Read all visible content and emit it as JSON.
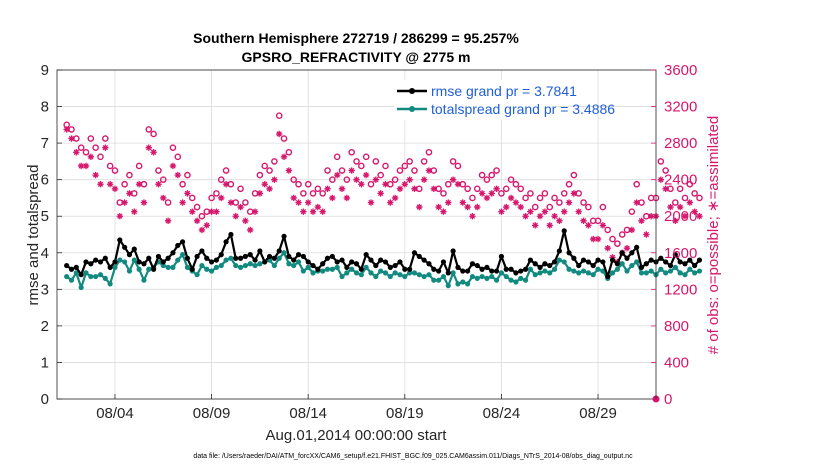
{
  "chart_data": {
    "type": "line",
    "title": "Southern Hemisphere 272719 / 286299 = 95.257%",
    "subtitle": "GPSRO_REFRACTIVITY @ 2775 m",
    "xlabel": "Aug.01,2014 00:00:00 start",
    "ylabel_left": "rmse and totalspread",
    "ylabel_right": "# of obs: o=possible; ∗=assimilated",
    "footnote": "data file: /Users/raeder/DAI/ATM_forcXX/CAM6_setup/f.e21.FHIST_BGC.f09_025.CAM6assim.011/Diags_NTrS_2014-08/obs_diag_output.nc",
    "xlim": [
      0.5,
      31.5
    ],
    "ylim_left": [
      0,
      9
    ],
    "ylim_right": [
      0,
      3600
    ],
    "x_ticks": [
      3.5,
      8.5,
      13.5,
      18.5,
      23.5,
      28.5
    ],
    "x_tick_labels": [
      "08/04",
      "08/09",
      "08/14",
      "08/19",
      "08/24",
      "08/29"
    ],
    "y_ticks_left": [
      "0",
      "1",
      "2",
      "3",
      "4",
      "5",
      "6",
      "7",
      "8",
      "9"
    ],
    "y_ticks_right": [
      "0",
      "400",
      "800",
      "1200",
      "1600",
      "2000",
      "2400",
      "2800",
      "3200",
      "3600"
    ],
    "legend_position": "top-right",
    "colors": {
      "rmse": "#000000",
      "spread": "#138a80",
      "obs": "#d6176d",
      "grid": "#dcdcdc",
      "legend_text": "#1f5fd6"
    },
    "series": [
      {
        "name": "rmse grand pr = 3.7841",
        "axis": "left",
        "values": [
          3.65,
          3.55,
          3.6,
          3.4,
          3.75,
          3.7,
          3.8,
          3.75,
          3.85,
          3.6,
          3.75,
          4.35,
          4.15,
          3.95,
          4.1,
          3.75,
          3.7,
          3.85,
          3.55,
          3.9,
          3.75,
          3.85,
          4.0,
          4.2,
          4.3,
          3.85,
          3.55,
          3.9,
          4.05,
          3.85,
          3.75,
          3.8,
          3.95,
          4.3,
          4.5,
          3.85,
          3.85,
          3.9,
          3.95,
          3.8,
          4.05,
          3.75,
          3.9,
          3.85,
          4.05,
          4.45,
          3.9,
          3.8,
          3.95,
          3.9,
          3.75,
          3.65,
          3.55,
          3.7,
          3.85,
          3.9,
          3.75,
          3.8,
          3.6,
          3.75,
          3.7,
          3.55,
          3.95,
          3.8,
          3.65,
          3.8,
          3.75,
          3.6,
          3.65,
          3.75,
          3.55,
          3.55,
          4.0,
          3.9,
          3.8,
          3.7,
          3.55,
          3.5,
          3.75,
          3.45,
          4.05,
          3.6,
          3.5,
          3.5,
          3.7,
          3.65,
          3.55,
          3.6,
          3.5,
          3.5,
          3.9,
          3.55,
          3.55,
          3.45,
          3.5,
          3.55,
          3.8,
          3.7,
          3.6,
          3.7,
          3.65,
          3.75,
          4.05,
          4.6,
          4.0,
          3.85,
          3.65,
          3.8,
          3.75,
          3.65,
          3.8,
          3.75,
          3.35,
          3.8,
          3.7,
          4.0,
          3.85,
          4.0,
          4.15,
          3.6,
          3.7,
          3.8,
          3.75,
          3.85,
          3.75,
          3.65,
          3.95,
          3.75,
          3.7,
          3.8,
          3.65,
          3.8
        ]
      },
      {
        "name": "totalspread grand pr = 3.4886",
        "axis": "left",
        "values": [
          3.35,
          3.25,
          3.45,
          3.05,
          3.45,
          3.35,
          3.35,
          3.4,
          3.3,
          3.15,
          3.6,
          3.8,
          3.75,
          3.5,
          3.8,
          3.55,
          3.25,
          3.55,
          3.6,
          3.75,
          3.65,
          3.6,
          3.6,
          3.8,
          3.95,
          3.6,
          3.5,
          3.4,
          3.65,
          3.55,
          3.5,
          3.6,
          3.65,
          3.8,
          3.85,
          3.65,
          3.6,
          3.65,
          3.7,
          3.65,
          3.7,
          3.75,
          3.8,
          3.65,
          3.85,
          4.0,
          3.7,
          3.65,
          3.75,
          3.5,
          3.6,
          3.45,
          3.5,
          3.5,
          3.55,
          3.55,
          3.6,
          3.35,
          3.45,
          3.55,
          3.45,
          3.4,
          3.6,
          3.45,
          3.35,
          3.5,
          3.45,
          3.35,
          3.45,
          3.4,
          3.35,
          3.45,
          3.45,
          3.4,
          3.35,
          3.4,
          3.25,
          3.25,
          3.35,
          3.1,
          3.45,
          3.15,
          3.2,
          3.15,
          3.35,
          3.3,
          3.35,
          3.3,
          3.35,
          3.25,
          3.45,
          3.35,
          3.25,
          3.2,
          3.3,
          3.25,
          3.55,
          3.4,
          3.45,
          3.5,
          3.45,
          3.55,
          3.8,
          3.75,
          3.55,
          3.5,
          3.45,
          3.5,
          3.45,
          3.4,
          3.55,
          3.5,
          3.3,
          3.45,
          3.55,
          3.7,
          3.5,
          3.65,
          3.75,
          3.45,
          3.45,
          3.5,
          3.4,
          3.55,
          3.45,
          3.5,
          3.6,
          3.45,
          3.4,
          3.55,
          3.45,
          3.5
        ]
      },
      {
        "name": "obs possible",
        "axis": "right",
        "marker": "circle",
        "values": [
          3000,
          2950,
          2850,
          2750,
          2700,
          2850,
          2750,
          2650,
          2850,
          2550,
          2500,
          2150,
          2350,
          2450,
          2250,
          2550,
          2350,
          2950,
          2900,
          2500,
          2400,
          2150,
          2750,
          2650,
          2350,
          2450,
          2200,
          2100,
          2000,
          2050,
          2200,
          2250,
          2400,
          2500,
          2350,
          2150,
          2300,
          2150,
          2050,
          2250,
          2450,
          2550,
          2500,
          2600,
          3100,
          2850,
          2700,
          2400,
          2350,
          2250,
          2350,
          2250,
          2300,
          2250,
          2500,
          2400,
          2650,
          2500,
          2400,
          2700,
          2600,
          2550,
          2650,
          2350,
          2600,
          2450,
          2550,
          2350,
          2400,
          2500,
          2550,
          2600,
          2500,
          2300,
          2600,
          2700,
          2500,
          2300,
          2250,
          2350,
          2600,
          2550,
          2350,
          2300,
          2200,
          2300,
          2450,
          2400,
          2450,
          2500,
          2250,
          2300,
          2400,
          2350,
          2300,
          2200,
          2250,
          2100,
          2200,
          2250,
          2100,
          2200,
          2150,
          2250,
          2350,
          2450,
          2250,
          2150,
          2100,
          1950,
          1950,
          2100,
          1850,
          1750,
          1700,
          1800,
          1850,
          2050,
          2350,
          2150,
          2000,
          2200,
          2200,
          2600,
          2500,
          2300,
          2150,
          2300,
          2200,
          2350,
          2250,
          2200
        ]
      },
      {
        "name": "obs assimilated",
        "axis": "right",
        "marker": "star",
        "values": [
          2950,
          2850,
          2700,
          2550,
          2550,
          2650,
          2450,
          2350,
          2750,
          2350,
          2300,
          2000,
          2150,
          2250,
          2050,
          2350,
          2150,
          2750,
          2700,
          2350,
          2200,
          1950,
          2550,
          2450,
          2150,
          2250,
          2050,
          1950,
          1850,
          1900,
          2050,
          2050,
          2200,
          2350,
          2150,
          2000,
          2100,
          1950,
          1850,
          2050,
          2250,
          2350,
          2300,
          2400,
          2900,
          2650,
          2500,
          2200,
          2150,
          2050,
          2150,
          2050,
          2100,
          2050,
          2300,
          2200,
          2450,
          2300,
          2200,
          2500,
          2400,
          2350,
          2450,
          2150,
          2400,
          2250,
          2350,
          2150,
          2200,
          2300,
          2350,
          2400,
          2300,
          2100,
          2400,
          2500,
          2300,
          2100,
          2050,
          2150,
          2400,
          2350,
          2150,
          2100,
          2000,
          2100,
          2250,
          2200,
          2250,
          2300,
          2050,
          2100,
          2200,
          2150,
          2100,
          2000,
          2050,
          1900,
          2000,
          2050,
          1900,
          2000,
          1950,
          2050,
          2150,
          2250,
          2050,
          1950,
          1900,
          1750,
          1750,
          1900,
          1650,
          1550,
          1500,
          1600,
          1650,
          1850,
          2150,
          1950,
          1800,
          2000,
          2000,
          2400,
          2300,
          2100,
          1950,
          2100,
          2000,
          2150,
          2050,
          2000
        ]
      }
    ]
  }
}
